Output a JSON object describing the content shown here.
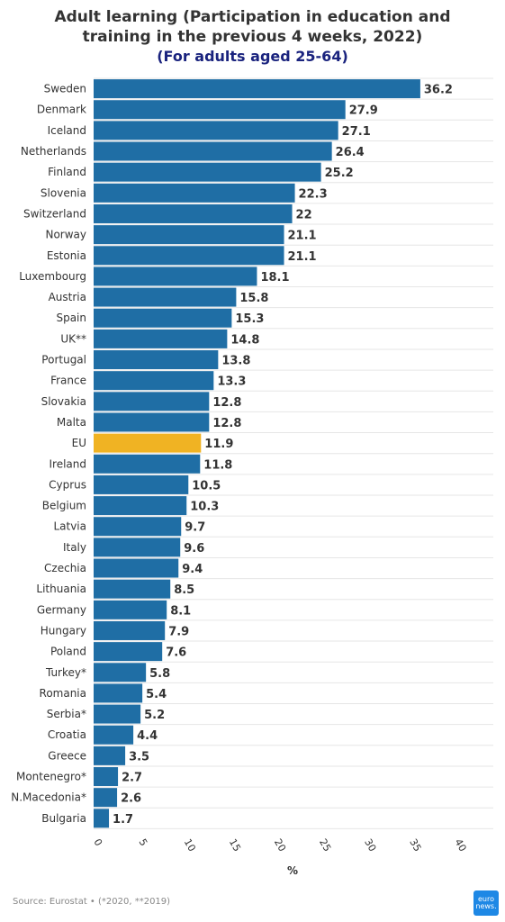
{
  "header": {
    "title": "Adult learning (Participation in education and training in the previous 4 weeks, 2022)",
    "subtitle": "(For adults aged 25-64)"
  },
  "footer": {
    "source": "Source: Eurostat • (*2020, **2019)",
    "logo_line1": "euro",
    "logo_line2": "news."
  },
  "colors": {
    "bar": "#1f6ea5",
    "highlight": "#f0b323",
    "grid": "#e6e6e6",
    "subtitle": "#1a237e"
  },
  "chart_data": {
    "type": "bar",
    "orientation": "horizontal",
    "categories": [
      "Sweden",
      "Denmark",
      "Iceland",
      "Netherlands",
      "Finland",
      "Slovenia",
      "Switzerland",
      "Norway",
      "Estonia",
      "Luxembourg",
      "Austria",
      "Spain",
      "UK**",
      "Portugal",
      "France",
      "Slovakia",
      "Malta",
      "EU",
      "Ireland",
      "Cyprus",
      "Belgium",
      "Latvia",
      "Italy",
      "Czechia",
      "Lithuania",
      "Germany",
      "Hungary",
      "Poland",
      "Turkey*",
      "Romania",
      "Serbia*",
      "Croatia",
      "Greece",
      "Montenegro*",
      "N.Macedonia*",
      "Bulgaria"
    ],
    "values": [
      36.2,
      27.9,
      27.1,
      26.4,
      25.2,
      22.3,
      22,
      21.1,
      21.1,
      18.1,
      15.8,
      15.3,
      14.8,
      13.8,
      13.3,
      12.8,
      12.8,
      11.9,
      11.8,
      10.5,
      10.3,
      9.7,
      9.6,
      9.4,
      8.5,
      8.1,
      7.9,
      7.6,
      5.8,
      5.4,
      5.2,
      4.4,
      3.5,
      2.7,
      2.6,
      1.7
    ],
    "value_labels": [
      "36.2",
      "27.9",
      "27.1",
      "26.4",
      "25.2",
      "22.3",
      "22",
      "21.1",
      "21.1",
      "18.1",
      "15.8",
      "15.3",
      "14.8",
      "13.8",
      "13.3",
      "12.8",
      "12.8",
      "11.9",
      "11.8",
      "10.5",
      "10.3",
      "9.7",
      "9.6",
      "9.4",
      "8.5",
      "8.1",
      "7.9",
      "7.6",
      "5.8",
      "5.4",
      "5.2",
      "4.4",
      "3.5",
      "2.7",
      "2.6",
      "1.7"
    ],
    "highlight_category": "EU",
    "xlim": [
      0,
      40
    ],
    "xticks": [
      0,
      5,
      10,
      15,
      20,
      25,
      30,
      35,
      40
    ],
    "xlabel": "%",
    "grid": true
  }
}
